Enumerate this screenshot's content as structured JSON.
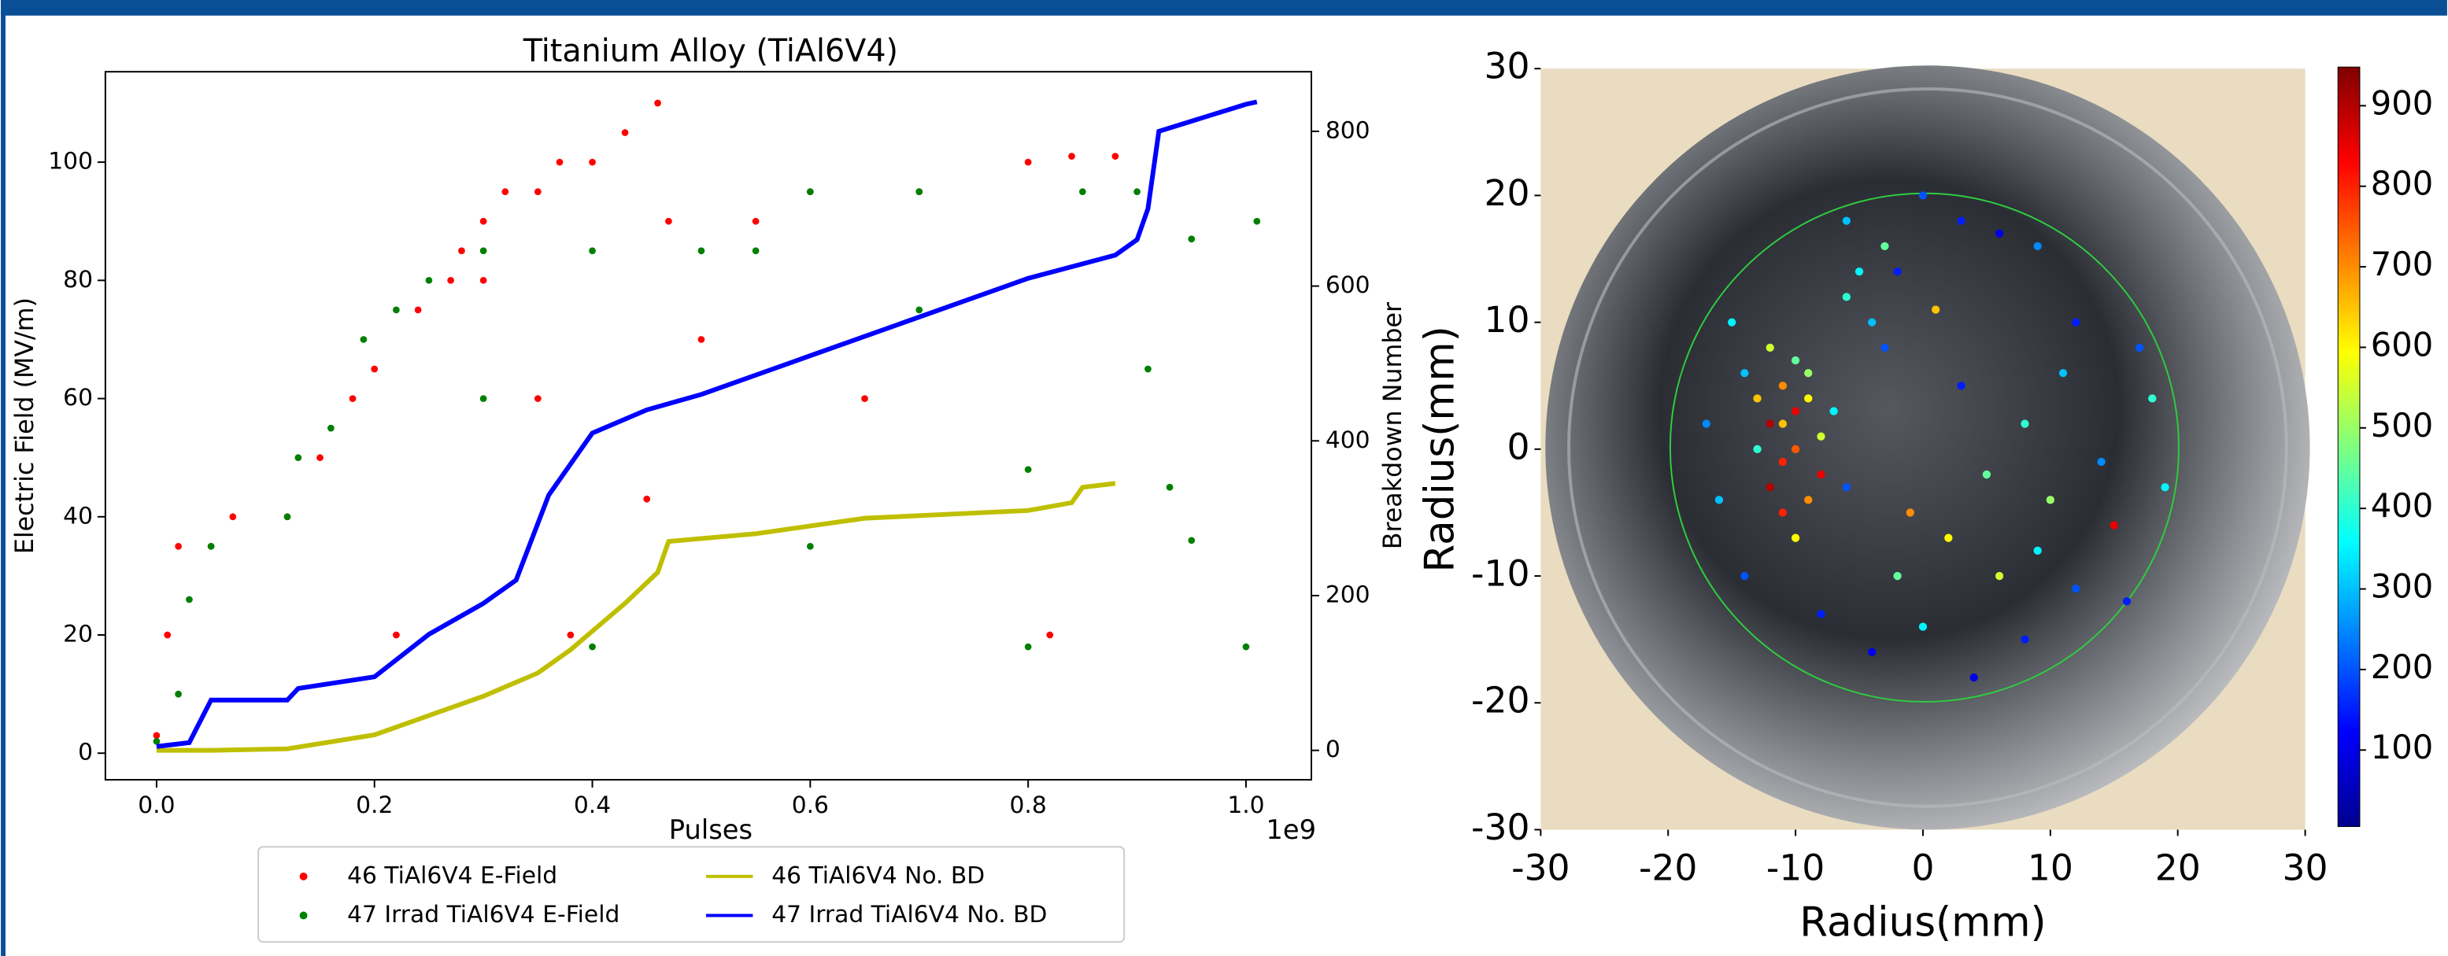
{
  "chart_data": [
    {
      "type": "line",
      "title": "Titanium Alloy (TiAl6V4)",
      "xlabel": "Pulses",
      "x_offset_label": "1e9",
      "ylabel": "Electric Field (MV/m)",
      "y2label": "Breakdown Number",
      "xlim": [
        -0.047,
        1.06
      ],
      "ylim": [
        -4.5,
        115.3
      ],
      "y2lim": [
        -38,
        877
      ],
      "xticks": [
        {
          "value": 0,
          "label": "0.0"
        },
        {
          "value": 0.2,
          "label": "0.2"
        },
        {
          "value": 0.4,
          "label": "0.4"
        },
        {
          "value": 0.6,
          "label": "0.6"
        },
        {
          "value": 0.8,
          "label": "0.8"
        },
        {
          "value": 1,
          "label": "1.0"
        }
      ],
      "yticks": [
        0,
        20,
        40,
        60,
        80,
        100
      ],
      "y2ticks": [
        0,
        200,
        400,
        600,
        800
      ],
      "legend": "lower center",
      "series": [
        {
          "name": "46 TiAl6V4 E-Field",
          "type": "scatter",
          "color": "#ff0000",
          "x": [
            0.0,
            0.01,
            0.02,
            0.05,
            0.07,
            0.12,
            0.15,
            0.18,
            0.2,
            0.24,
            0.27,
            0.28,
            0.3,
            0.32,
            0.35,
            0.37,
            0.4,
            0.43,
            0.46,
            0.47,
            0.55,
            0.6,
            0.7,
            0.8,
            0.84,
            0.88,
            0.3,
            0.35,
            0.38,
            0.45,
            0.65,
            0.22,
            0.5,
            0.82
          ],
          "values": [
            3,
            20,
            35,
            35,
            40,
            40,
            50,
            60,
            65,
            75,
            80,
            85,
            90,
            95,
            95,
            100,
            100,
            105,
            110,
            90,
            90,
            95,
            95,
            100,
            101,
            101,
            80,
            60,
            20,
            43,
            60,
            20,
            70,
            20
          ]
        },
        {
          "name": "47 Irrad TiAl6V4 E-Field",
          "type": "scatter",
          "color": "#008000",
          "x": [
            0.0,
            0.02,
            0.03,
            0.05,
            0.12,
            0.13,
            0.16,
            0.19,
            0.22,
            0.25,
            0.3,
            0.4,
            0.5,
            0.55,
            0.6,
            0.7,
            0.85,
            0.9,
            0.91,
            0.93,
            0.95,
            1.01,
            0.4,
            0.6,
            0.8,
            1.0,
            0.8,
            0.3,
            0.7,
            0.95
          ],
          "values": [
            2,
            10,
            26,
            35,
            40,
            50,
            55,
            70,
            75,
            80,
            85,
            85,
            85,
            85,
            95,
            95,
            95,
            95,
            65,
            45,
            87,
            90,
            18,
            35,
            18,
            18,
            48,
            60,
            75,
            36
          ]
        },
        {
          "name": "46 TiAl6V4 No. BD",
          "type": "line",
          "axis": "y2",
          "color": "#bfbf00",
          "x": [
            0.0,
            0.05,
            0.12,
            0.2,
            0.3,
            0.35,
            0.38,
            0.43,
            0.46,
            0.47,
            0.55,
            0.65,
            0.8,
            0.84,
            0.85,
            0.88
          ],
          "values": [
            0,
            0,
            2,
            20,
            70,
            100,
            130,
            190,
            230,
            270,
            280,
            300,
            310,
            320,
            340,
            345
          ]
        },
        {
          "name": "47 Irrad TiAl6V4 No. BD",
          "type": "line",
          "axis": "y2",
          "color": "#0000ff",
          "x": [
            0.0,
            0.03,
            0.05,
            0.12,
            0.13,
            0.2,
            0.25,
            0.3,
            0.33,
            0.36,
            0.4,
            0.45,
            0.5,
            0.6,
            0.7,
            0.8,
            0.88,
            0.9,
            0.91,
            0.92,
            1.0,
            1.01
          ],
          "values": [
            5,
            10,
            65,
            65,
            80,
            95,
            150,
            190,
            220,
            330,
            410,
            440,
            460,
            510,
            560,
            610,
            640,
            660,
            700,
            800,
            835,
            838
          ]
        }
      ]
    },
    {
      "type": "scatter",
      "xlabel": "Radius(mm)",
      "ylabel": "Radius(mm)",
      "xlim": [
        -30,
        30
      ],
      "ylim": [
        -30,
        30
      ],
      "xticks": [
        -30,
        -20,
        -10,
        0,
        10,
        20,
        30
      ],
      "yticks": [
        -30,
        -20,
        -10,
        0,
        10,
        20,
        30
      ],
      "colormap": "jet",
      "clim": [
        5,
        948
      ],
      "cticks": [
        100,
        200,
        300,
        400,
        500,
        600,
        700,
        800,
        900
      ],
      "x": [
        -10,
        -11,
        -9,
        -12,
        -10,
        -8,
        -11,
        -13,
        -9,
        -10,
        -12,
        -11,
        -9,
        -13,
        -7,
        -14,
        -10,
        -12,
        -8,
        -11,
        -5,
        -4,
        -3,
        -6,
        -2,
        0,
        3,
        6,
        9,
        12,
        17,
        18,
        19,
        15,
        12,
        8,
        4,
        0,
        -2,
        -4,
        -8,
        -14,
        -16,
        -17,
        -15,
        5,
        8,
        10,
        2,
        6,
        -6,
        3,
        -1,
        11,
        14,
        -3,
        1,
        -6,
        9,
        16
      ],
      "values": [
        3,
        5,
        4,
        2,
        0,
        1,
        -1,
        4,
        6,
        7,
        -3,
        -5,
        -4,
        0,
        3,
        6,
        -7,
        8,
        -2,
        2,
        14,
        10,
        8,
        12,
        14,
        20,
        18,
        17,
        16,
        10,
        8,
        4,
        -3,
        -6,
        -11,
        -15,
        -18,
        -14,
        -10,
        -16,
        -13,
        -10,
        -4,
        2,
        10,
        -2,
        2,
        -4,
        -7,
        -10,
        -3,
        5,
        -5,
        6,
        -1,
        16,
        11,
        18,
        -8,
        -12
      ],
      "c": [
        850,
        700,
        600,
        900,
        750,
        550,
        800,
        650,
        500,
        450,
        900,
        800,
        700,
        400,
        350,
        300,
        600,
        550,
        850,
        650,
        350,
        300,
        200,
        400,
        150,
        200,
        150,
        100,
        250,
        150,
        200,
        400,
        350,
        850,
        200,
        150,
        100,
        350,
        450,
        100,
        150,
        200,
        300,
        250,
        350,
        450,
        400,
        500,
        600,
        550,
        200,
        150,
        700,
        300,
        250,
        450,
        650,
        300,
        350,
        150
      ]
    }
  ]
}
